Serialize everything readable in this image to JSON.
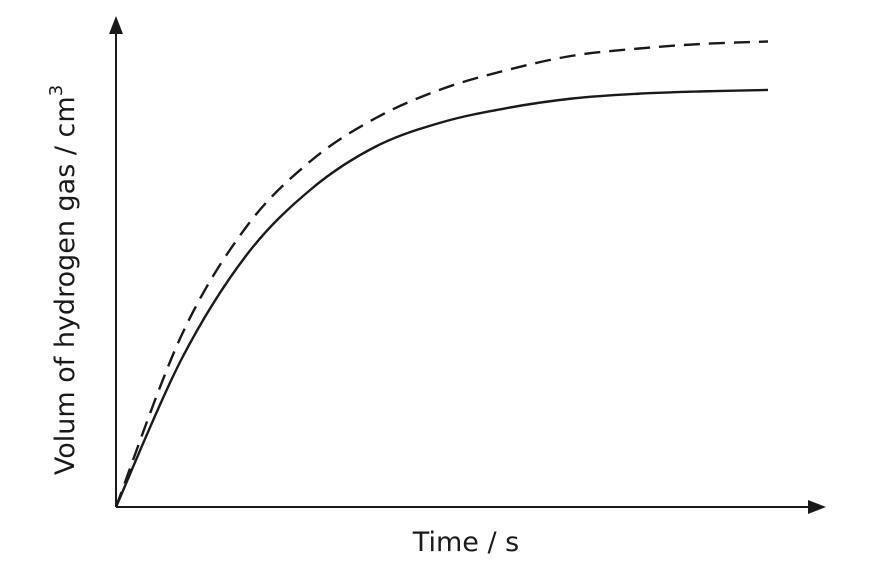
{
  "chart_data": {
    "type": "line",
    "title": "",
    "xlabel": "Time / s",
    "ylabel_text": "Volum of hydrogen gas / cm",
    "ylabel_superscript": "3",
    "xlim": [
      0,
      10
    ],
    "ylim": [
      0,
      10
    ],
    "grid": false,
    "tick_labels": false,
    "series": [
      {
        "style": "dashed",
        "x": [
          0,
          1,
          2,
          3,
          4,
          5,
          6,
          7,
          8,
          9,
          10
        ],
        "y": [
          0,
          3.6,
          5.9,
          7.3,
          8.2,
          8.8,
          9.2,
          9.5,
          9.65,
          9.75,
          9.8
        ]
      },
      {
        "style": "solid",
        "x": [
          0,
          1,
          2,
          3,
          4,
          5,
          6,
          7,
          8,
          9,
          10
        ],
        "y": [
          0,
          3.1,
          5.3,
          6.7,
          7.6,
          8.1,
          8.4,
          8.6,
          8.7,
          8.75,
          8.78
        ]
      }
    ]
  }
}
